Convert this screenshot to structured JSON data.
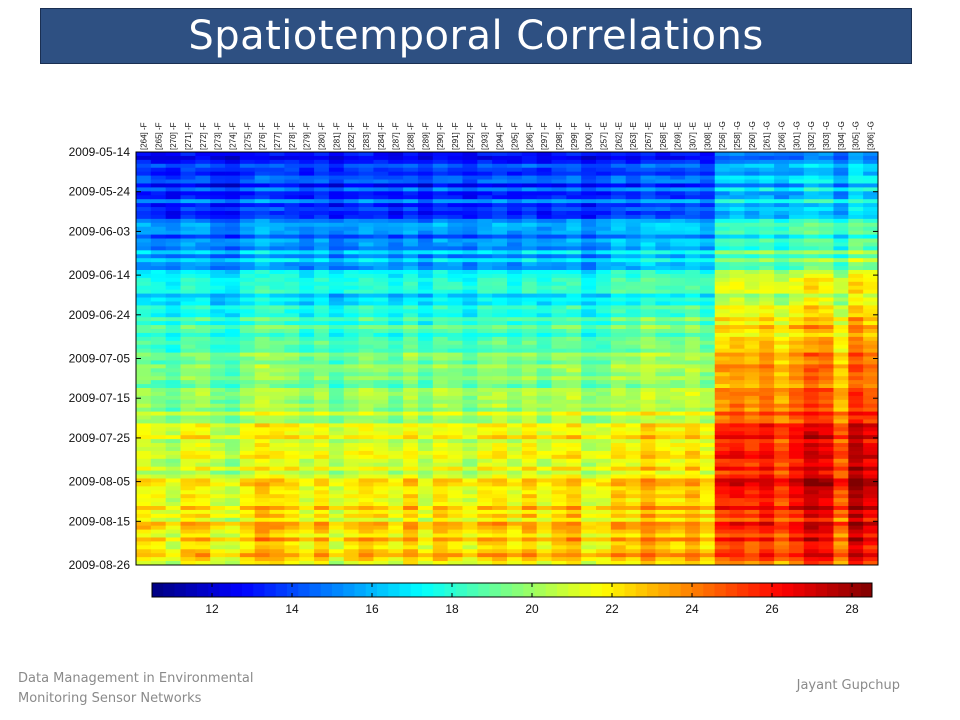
{
  "slide": {
    "title": "Spatiotemporal Correlations",
    "footer_left_line1": "Data Management in Environmental",
    "footer_left_line2": "Monitoring Sensor Networks",
    "footer_right": "Jayant Gupchup"
  },
  "colors": {
    "title_bar": "#2e5082",
    "footer_text": "#8a8a8a",
    "colormap": "jet"
  },
  "chart_data": {
    "type": "heatmap",
    "title": "",
    "xlabel": "",
    "ylabel": "",
    "columns": [
      "[264] -F",
      "[265] -F",
      "[270] -F",
      "[271] -F",
      "[272] -F",
      "[273] -F",
      "[274] -F",
      "[275] -F",
      "[276] -F",
      "[277] -F",
      "[278] -F",
      "[279] -F",
      "[280] -F",
      "[281] -F",
      "[282] -F",
      "[283] -F",
      "[284] -F",
      "[287] -F",
      "[288] -F",
      "[289] -F",
      "[290] -F",
      "[291] -F",
      "[292] -F",
      "[293] -F",
      "[294] -F",
      "[295] -F",
      "[296] -F",
      "[297] -F",
      "[298] -F",
      "[299] -F",
      "[300] -F",
      "[257] -E",
      "[262] -E",
      "[263] -E",
      "[267] -E",
      "[268] -E",
      "[269] -E",
      "[307] -E",
      "[308] -E",
      "[256] -G",
      "[258] -G",
      "[260] -G",
      "[261] -G",
      "[266] -G",
      "[301] -G",
      "[302] -G",
      "[303] -G",
      "[304] -G",
      "[305] -G",
      "[306] -G"
    ],
    "y_ticks": [
      "2009-05-14",
      "2009-05-24",
      "2009-06-03",
      "2009-06-14",
      "2009-06-24",
      "2009-07-05",
      "2009-07-15",
      "2009-07-25",
      "2009-08-05",
      "2009-08-15",
      "2009-08-26"
    ],
    "y_range": [
      "2009-05-14",
      "2009-08-26"
    ],
    "colorbar": {
      "ticks": [
        12,
        14,
        16,
        18,
        20,
        22,
        24,
        26,
        28
      ],
      "range": [
        10.5,
        28.5
      ]
    },
    "trend_dates": [
      "2009-05-14",
      "2009-05-24",
      "2009-06-03",
      "2009-06-14",
      "2009-06-24",
      "2009-07-05",
      "2009-07-15",
      "2009-07-25",
      "2009-08-05",
      "2009-08-15",
      "2009-08-26"
    ],
    "group_trend": {
      "F": [
        12.8,
        13.8,
        15.0,
        16.8,
        18.0,
        19.2,
        20.3,
        21.2,
        21.8,
        22.4,
        22.8
      ],
      "E": [
        13.0,
        14.2,
        15.6,
        17.4,
        18.6,
        19.6,
        20.6,
        21.6,
        22.4,
        22.8,
        23.2
      ],
      "G": [
        14.6,
        16.0,
        17.6,
        19.8,
        21.6,
        22.8,
        23.8,
        25.2,
        26.0,
        25.2,
        24.6
      ]
    },
    "column_offsets": [
      0.0,
      -0.5,
      -1.2,
      0.2,
      0.3,
      -1.0,
      -1.4,
      0.1,
      1.0,
      0.6,
      0.2,
      -0.8,
      0.3,
      -1.2,
      -0.2,
      0.4,
      0.0,
      -0.8,
      0.6,
      -1.0,
      0.5,
      0.0,
      -0.9,
      0.3,
      0.5,
      -0.4,
      0.7,
      -0.5,
      0.4,
      0.9,
      -0.8,
      -0.9,
      0.3,
      -0.2,
      1.0,
      0.2,
      0.0,
      0.8,
      -0.4,
      0.3,
      0.6,
      0.1,
      0.9,
      -0.4,
      0.8,
      2.0,
      1.6,
      -0.8,
      2.5,
      1.4
    ]
  }
}
